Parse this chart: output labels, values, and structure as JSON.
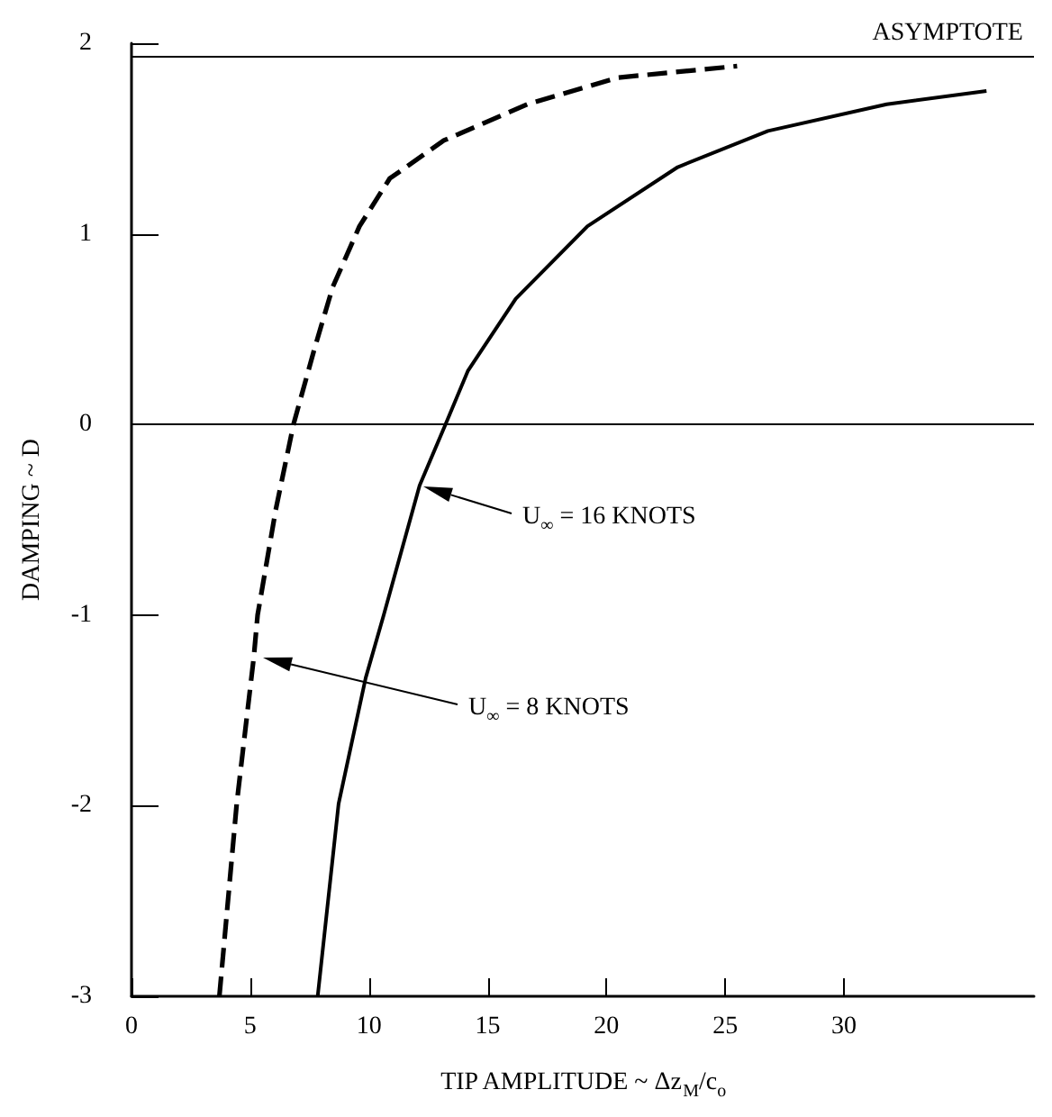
{
  "chart_data": {
    "type": "line",
    "xlabel": "TIP AMPLITUDE ~ Δz$_{M}$/c$_{o}$",
    "ylabel": "DAMPING ~ D",
    "xlim": [
      0,
      38
    ],
    "xticks": [
      0,
      5,
      10,
      15,
      20,
      25,
      30
    ],
    "ylim": [
      -3,
      2
    ],
    "yticks": [
      -3,
      -2,
      -1,
      0,
      1,
      2
    ],
    "grid": false,
    "marker": "none",
    "series": [
      {
        "color": "#000000",
        "line_style": "dashed",
        "x": [
          3.7,
          4.43,
          5.15,
          5.31,
          6.07,
          6.82,
          7.71,
          8.47,
          9.6,
          10.87,
          13.15,
          16.68,
          20.5,
          25.5
        ],
        "values": [
          -3,
          -1.99,
          -1.22,
          -1.0,
          -0.45,
          0,
          0.4,
          0.72,
          1.04,
          1.29,
          1.49,
          1.68,
          1.82,
          1.88
        ]
      },
      {
        "color": "#000000",
        "line_style": "solid",
        "x": [
          7.84,
          8.72,
          9.86,
          10.62,
          12.13,
          13.22,
          14.16,
          16.18,
          19.2,
          23.0,
          26.8,
          31.8,
          36.0
        ],
        "values": [
          -3,
          -1.99,
          -1.33,
          -1.0,
          -0.32,
          0,
          0.28,
          0.66,
          1.04,
          1.35,
          1.54,
          1.68,
          1.75
        ]
      }
    ],
    "ref_lines": [
      {
        "axis": "y",
        "value": 0,
        "color": "#000000"
      },
      {
        "axis": "y",
        "value": 1.93,
        "label": "ASYMPTOTE",
        "color": "#000000"
      }
    ],
    "annotations": [
      "U$_{∞}$ = 16 KNOTS",
      "U$_{∞}$ = 8 KNOTS"
    ]
  }
}
